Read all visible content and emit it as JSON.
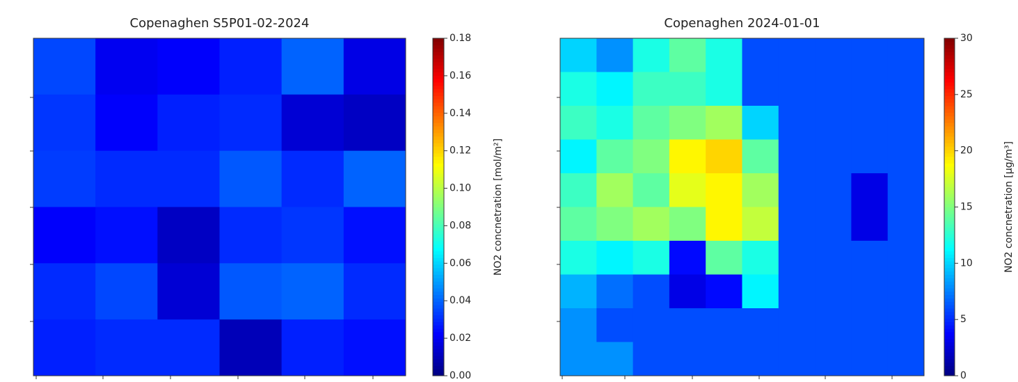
{
  "chart_data": [
    {
      "type": "heatmap",
      "title": "Copenaghen S5P01-02-2024",
      "colormap": "jet",
      "clim": [
        0,
        0.18
      ],
      "cticks": [
        {
          "value": 0,
          "label": "0.00"
        },
        {
          "value": 0.02,
          "label": "0.02"
        },
        {
          "value": 0.04,
          "label": "0.04"
        },
        {
          "value": 0.06,
          "label": "0.06"
        },
        {
          "value": 0.08,
          "label": "0.08"
        },
        {
          "value": 0.1,
          "label": "0.10"
        },
        {
          "value": 0.12,
          "label": "0.12"
        },
        {
          "value": 0.14,
          "label": "0.14"
        },
        {
          "value": 0.16,
          "label": "0.16"
        },
        {
          "value": 0.18,
          "label": "0.18"
        }
      ],
      "colorbar_label": "NO2 concnetration [mol/m²]",
      "values": [
        [
          0.035,
          0.02,
          0.022,
          0.028,
          0.04,
          0.018
        ],
        [
          0.032,
          0.022,
          0.028,
          0.03,
          0.015,
          0.012
        ],
        [
          0.033,
          0.03,
          0.03,
          0.038,
          0.03,
          0.04
        ],
        [
          0.022,
          0.025,
          0.012,
          0.03,
          0.032,
          0.025
        ],
        [
          0.03,
          0.035,
          0.015,
          0.038,
          0.04,
          0.03
        ],
        [
          0.028,
          0.03,
          0.03,
          0.01,
          0.028,
          0.025
        ]
      ]
    },
    {
      "type": "heatmap",
      "title": "Copenaghen 2024-01-01",
      "colormap": "jet",
      "clim": [
        0,
        30
      ],
      "cticks": [
        0,
        5,
        10,
        15,
        20,
        25,
        30
      ],
      "colorbar_label": "NO2 concnetration [µg/m³]",
      "values": [
        [
          10,
          8,
          12,
          14,
          12,
          6,
          6,
          6,
          6,
          6
        ],
        [
          12,
          11,
          13,
          13,
          12,
          6,
          6,
          6,
          6,
          6
        ],
        [
          13,
          12,
          14,
          15,
          16,
          10,
          6,
          6,
          6,
          6
        ],
        [
          11,
          14,
          15,
          19,
          20,
          14,
          6,
          6,
          6,
          6
        ],
        [
          13,
          16,
          14,
          18,
          19,
          16,
          6,
          6,
          3,
          6
        ],
        [
          14,
          15,
          16,
          15,
          19,
          17,
          6,
          6,
          3,
          6
        ],
        [
          12,
          11,
          12,
          4,
          14,
          12,
          6,
          6,
          6,
          6
        ],
        [
          9,
          7,
          6,
          3,
          4,
          11,
          6,
          6,
          6,
          6
        ],
        [
          8,
          6,
          6,
          6,
          6,
          6,
          6,
          6,
          6,
          6
        ],
        [
          8,
          8,
          6,
          6,
          6,
          6,
          6,
          6,
          6,
          6
        ]
      ]
    }
  ]
}
